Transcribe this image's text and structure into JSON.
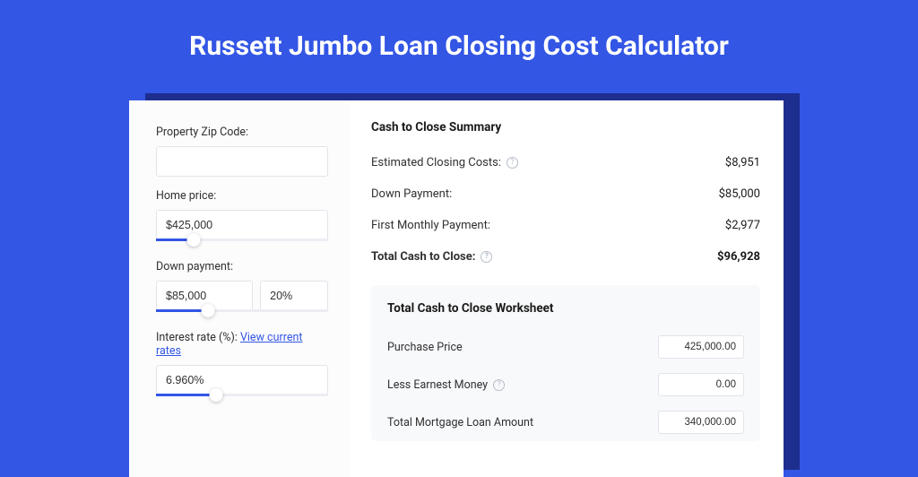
{
  "page_title": "Russett Jumbo Loan Closing Cost Calculator",
  "colors": {
    "background": "#3356e5",
    "shadow": "#1e2e8f",
    "card": "#ffffff",
    "left_panel": "#fcfcfd",
    "input_border": "#e2e4ea",
    "slider_fill": "#3356e5",
    "slider_track": "#eceef3",
    "worksheet_bg": "#f8f9fb",
    "text": "#303030",
    "link": "#3356e5"
  },
  "form": {
    "zip_label": "Property Zip Code:",
    "zip_value": "",
    "home_price_label": "Home price:",
    "home_price_value": "$425,000",
    "home_price_slider_pct": 22,
    "down_payment_label": "Down payment:",
    "down_payment_value": "$85,000",
    "down_payment_pct_value": "20%",
    "down_payment_slider_pct": 30,
    "interest_rate_label_prefix": "Interest rate (%): ",
    "interest_rate_link": "View current rates",
    "interest_rate_value": "6.960%",
    "interest_rate_slider_pct": 35
  },
  "summary": {
    "title": "Cash to Close Summary",
    "rows": [
      {
        "label": "Estimated Closing Costs:",
        "help": true,
        "value": "$8,951",
        "bold": false
      },
      {
        "label": "Down Payment:",
        "help": false,
        "value": "$85,000",
        "bold": false
      },
      {
        "label": "First Monthly Payment:",
        "help": false,
        "value": "$2,977",
        "bold": false
      },
      {
        "label": "Total Cash to Close:",
        "help": true,
        "value": "$96,928",
        "bold": true
      }
    ]
  },
  "worksheet": {
    "title": "Total Cash to Close Worksheet",
    "rows": [
      {
        "label": "Purchase Price",
        "help": false,
        "value": "425,000.00"
      },
      {
        "label": "Less Earnest Money",
        "help": true,
        "value": "0.00"
      },
      {
        "label": "Total Mortgage Loan Amount",
        "help": false,
        "value": "340,000.00"
      }
    ]
  }
}
